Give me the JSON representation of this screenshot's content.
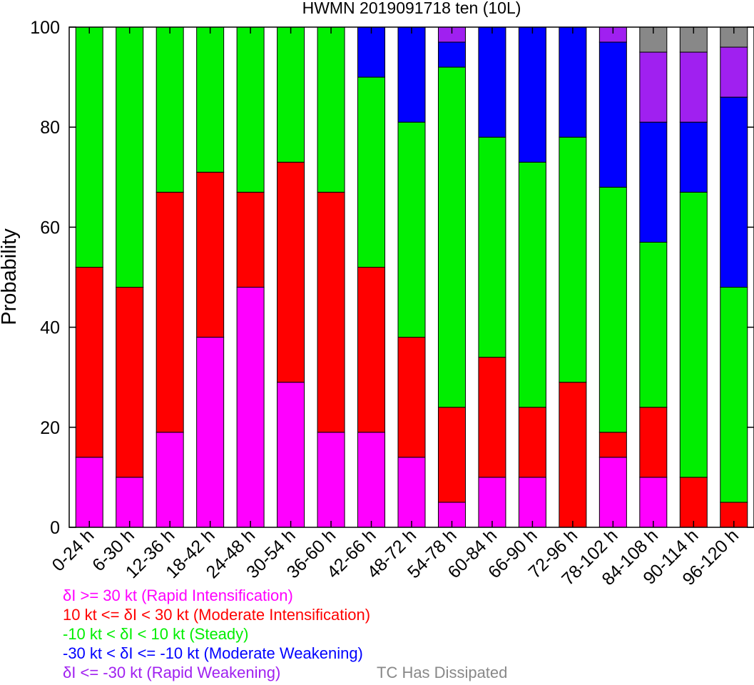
{
  "chart_data": {
    "type": "bar",
    "stacked": true,
    "title": "HWMN 2019091718 ten (10L)",
    "xlabel": "",
    "ylabel": "Probability",
    "ylim": [
      0,
      100
    ],
    "yticks": [
      0,
      20,
      40,
      60,
      80,
      100
    ],
    "grid": false,
    "legend_placement": "bottom",
    "categories": [
      "0-24 h",
      "6-30 h",
      "12-36 h",
      "18-42 h",
      "24-48 h",
      "30-54 h",
      "36-60 h",
      "42-66 h",
      "48-72 h",
      "54-78 h",
      "60-84 h",
      "66-90 h",
      "72-96 h",
      "78-102 h",
      "84-108 h",
      "90-114 h",
      "96-120 h"
    ],
    "series": [
      {
        "name": "δI >= 30 kt (Rapid Intensification)",
        "color": "#ff00ff",
        "values": [
          14,
          10,
          19,
          38,
          48,
          29,
          19,
          19,
          14,
          5,
          10,
          10,
          0,
          14,
          10,
          0,
          0
        ]
      },
      {
        "name": "10 kt <= δI < 30 kt (Moderate Intensification)",
        "color": "#ff0000",
        "values": [
          38,
          38,
          48,
          33,
          19,
          44,
          48,
          33,
          24,
          19,
          24,
          14,
          29,
          5,
          14,
          10,
          5
        ]
      },
      {
        "name": "-10 kt < δI < 10 kt (Steady)",
        "color": "#00ee00",
        "values": [
          48,
          52,
          33,
          29,
          33,
          27,
          33,
          38,
          43,
          68,
          44,
          49,
          49,
          49,
          33,
          57,
          43
        ]
      },
      {
        "name": "-30 kt < δI <= -10 kt (Moderate Weakening)",
        "color": "#0000ff",
        "values": [
          0,
          0,
          0,
          0,
          0,
          0,
          0,
          10,
          19,
          5,
          22,
          27,
          22,
          29,
          24,
          14,
          38
        ]
      },
      {
        "name": "δI <= -30 kt (Rapid Weakening)",
        "color": "#a020f0",
        "values": [
          0,
          0,
          0,
          0,
          0,
          0,
          0,
          0,
          0,
          3,
          0,
          0,
          0,
          3,
          14,
          14,
          10
        ]
      },
      {
        "name": "TC Has Dissipated",
        "color": "#888888",
        "values": [
          0,
          0,
          0,
          0,
          0,
          0,
          0,
          0,
          0,
          0,
          0,
          0,
          0,
          0,
          5,
          5,
          4
        ]
      }
    ]
  }
}
